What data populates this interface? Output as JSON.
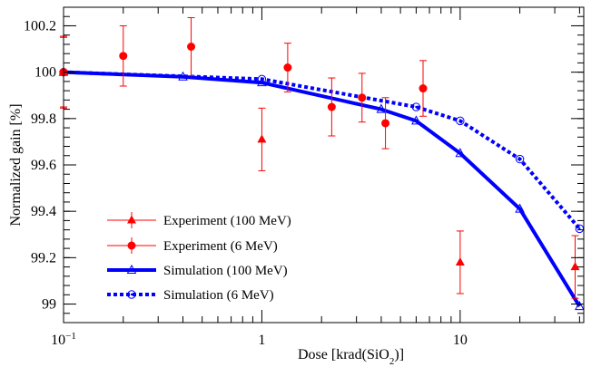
{
  "chart_data": {
    "type": "scatter",
    "xlabel_text": "Dose [krad(SiO",
    "xlabel_sub": "2",
    "xlabel_tail": ")]",
    "ylabel": "Normalized gain [%]",
    "xscale": "log",
    "xlim": [
      0.1,
      42
    ],
    "ylim": [
      98.92,
      100.28
    ],
    "grid": false,
    "legend_placement": "bottom-left",
    "x_ticks": [
      {
        "value": 0.1,
        "base": "10",
        "exp": "−1"
      },
      {
        "value": 1,
        "label": "1"
      },
      {
        "value": 10,
        "label": "10"
      }
    ],
    "y_ticks": [
      {
        "value": 99,
        "label": "99"
      },
      {
        "value": 99.2,
        "label": "99.2"
      },
      {
        "value": 99.4,
        "label": "99.4"
      },
      {
        "value": 99.6,
        "label": "99.6"
      },
      {
        "value": 99.8,
        "label": "99.8"
      },
      {
        "value": 100,
        "label": "100"
      },
      {
        "value": 100.2,
        "label": "100.2"
      }
    ],
    "series": [
      {
        "name": "Experiment (100 MeV)",
        "kind": "errorbar",
        "marker": "triangle",
        "color": "#ff0000",
        "points": [
          {
            "x": 0.1,
            "y": 100.0,
            "err": 0.15
          },
          {
            "x": 1.0,
            "y": 99.71,
            "err": 0.135
          },
          {
            "x": 10.0,
            "y": 99.18,
            "err": 0.135
          },
          {
            "x": 38.0,
            "y": 99.16,
            "err": 0.135
          }
        ]
      },
      {
        "name": "Experiment (6 MeV)",
        "kind": "errorbar",
        "marker": "circle",
        "color": "#ff0000",
        "points": [
          {
            "x": 0.1,
            "y": 100.0,
            "err": 0.155
          },
          {
            "x": 0.2,
            "y": 100.07,
            "err": 0.13
          },
          {
            "x": 0.44,
            "y": 100.11,
            "err": 0.125
          },
          {
            "x": 1.35,
            "y": 100.02,
            "err": 0.105
          },
          {
            "x": 2.25,
            "y": 99.85,
            "err": 0.125
          },
          {
            "x": 3.2,
            "y": 99.89,
            "err": 0.105
          },
          {
            "x": 4.2,
            "y": 99.78,
            "err": 0.11
          },
          {
            "x": 6.5,
            "y": 99.93,
            "err": 0.12
          }
        ]
      },
      {
        "name": "Simulation (100 MeV)",
        "kind": "line",
        "marker": "open-triangle",
        "color": "#0000ff",
        "dash": "solid",
        "points": [
          {
            "x": 0.1,
            "y": 100.0
          },
          {
            "x": 0.4,
            "y": 99.98
          },
          {
            "x": 1.0,
            "y": 99.955
          },
          {
            "x": 4.0,
            "y": 99.84
          },
          {
            "x": 6.0,
            "y": 99.79
          },
          {
            "x": 10.0,
            "y": 99.65
          },
          {
            "x": 20.0,
            "y": 99.41
          },
          {
            "x": 40.0,
            "y": 98.99
          }
        ]
      },
      {
        "name": "Simulation (6 MeV)",
        "kind": "line",
        "marker": "open-circle",
        "color": "#0000ff",
        "dash": "dotted",
        "points": [
          {
            "x": 0.1,
            "y": 100.0
          },
          {
            "x": 1.0,
            "y": 99.97
          },
          {
            "x": 6.0,
            "y": 99.85
          },
          {
            "x": 10.0,
            "y": 99.79
          },
          {
            "x": 20.0,
            "y": 99.625
          },
          {
            "x": 40.0,
            "y": 99.325
          }
        ]
      }
    ]
  }
}
